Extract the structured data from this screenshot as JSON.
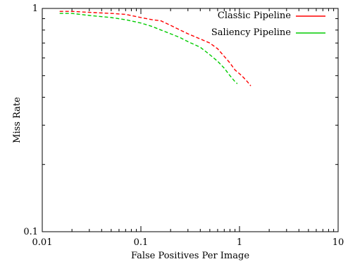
{
  "chart_data": {
    "type": "line",
    "title": "",
    "xlabel": "False Positives Per Image",
    "ylabel": "Miss Rate",
    "xscale": "log",
    "yscale": "log",
    "xlim": [
      0.01,
      10
    ],
    "ylim": [
      0.1,
      1
    ],
    "grid": false,
    "legend_position": "top-right",
    "x_ticks": [
      {
        "value": 0.01,
        "label": "0.01"
      },
      {
        "value": 0.1,
        "label": "0.1"
      },
      {
        "value": 1,
        "label": "1"
      },
      {
        "value": 10,
        "label": "10"
      }
    ],
    "y_ticks": [
      {
        "value": 0.1,
        "label": "0.1"
      },
      {
        "value": 1,
        "label": "1"
      }
    ],
    "series": [
      {
        "name": "Classic Pipeline",
        "color": "#ff0000",
        "dash": "dashed",
        "x": [
          0.015,
          0.02,
          0.03,
          0.05,
          0.07,
          0.1,
          0.13,
          0.16,
          0.2,
          0.25,
          0.3,
          0.4,
          0.5,
          0.6,
          0.7,
          0.8,
          0.9,
          1.0,
          1.1,
          1.2,
          1.3
        ],
        "y": [
          0.97,
          0.97,
          0.96,
          0.95,
          0.94,
          0.91,
          0.89,
          0.88,
          0.84,
          0.8,
          0.77,
          0.73,
          0.7,
          0.66,
          0.61,
          0.57,
          0.53,
          0.51,
          0.49,
          0.47,
          0.45
        ]
      },
      {
        "name": "Saliency Pipeline",
        "color": "#00cc00",
        "dash": "dashed",
        "x": [
          0.015,
          0.02,
          0.03,
          0.05,
          0.07,
          0.1,
          0.13,
          0.16,
          0.2,
          0.25,
          0.3,
          0.4,
          0.5,
          0.6,
          0.7,
          0.8,
          0.9,
          0.95
        ],
        "y": [
          0.95,
          0.95,
          0.93,
          0.91,
          0.89,
          0.86,
          0.83,
          0.8,
          0.77,
          0.74,
          0.71,
          0.67,
          0.62,
          0.58,
          0.54,
          0.5,
          0.47,
          0.46
        ]
      }
    ]
  }
}
